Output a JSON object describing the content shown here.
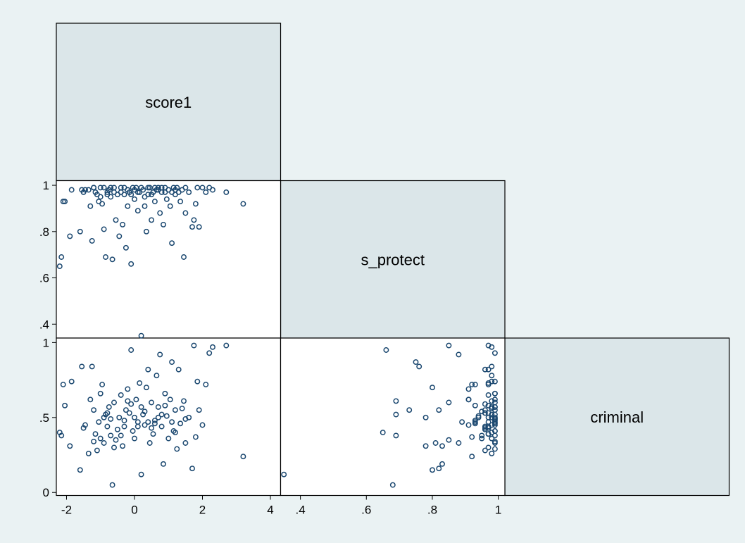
{
  "chart_data": {
    "type": "scatter",
    "kind": "scatterplot-matrix",
    "half": "lower",
    "grid": false,
    "legend": "none",
    "colors": {
      "background": "#eaf2f3",
      "diagonal": "#dbe6e9",
      "marker": "#1a476f"
    },
    "variables": [
      {
        "name": "score1",
        "range": [
          -2.3,
          4.3
        ],
        "ticks": [
          -2,
          0,
          2,
          4
        ],
        "tick_labels": [
          "-2",
          "0",
          "2",
          "4"
        ]
      },
      {
        "name": "s_protect",
        "range": [
          0.34,
          1.02
        ],
        "ticks": [
          0.4,
          0.6,
          0.8,
          1
        ],
        "tick_labels": [
          ".4",
          ".6",
          ".8",
          "1"
        ]
      },
      {
        "name": "criminal",
        "range": [
          -0.02,
          1.03
        ],
        "ticks": [
          0,
          0.5,
          1
        ],
        "tick_labels": [
          "0",
          ".5",
          "1"
        ]
      }
    ],
    "observations": [
      [
        -2.2,
        0.65,
        0.4
      ],
      [
        -2.15,
        0.69,
        0.38
      ],
      [
        -2.1,
        0.93,
        0.72
      ],
      [
        -2.05,
        0.93,
        0.58
      ],
      [
        -1.9,
        0.78,
        0.31
      ],
      [
        -1.85,
        0.98,
        0.74
      ],
      [
        -1.6,
        0.8,
        0.15
      ],
      [
        -1.55,
        0.98,
        0.84
      ],
      [
        -1.45,
        0.98,
        0.45
      ],
      [
        -1.35,
        0.98,
        0.26
      ],
      [
        -1.3,
        0.91,
        0.62
      ],
      [
        -1.25,
        0.76,
        0.84
      ],
      [
        -1.2,
        0.99,
        0.55
      ],
      [
        -1.15,
        0.97,
        0.39
      ],
      [
        -1.1,
        0.96,
        0.28
      ],
      [
        -1.05,
        0.93,
        0.47
      ],
      [
        -1.0,
        0.99,
        0.66
      ],
      [
        -0.95,
        0.92,
        0.72
      ],
      [
        -0.9,
        0.81,
        0.33
      ],
      [
        -0.85,
        0.69,
        0.52
      ],
      [
        -0.8,
        0.97,
        0.44
      ],
      [
        -0.75,
        0.98,
        0.57
      ],
      [
        -0.7,
        0.95,
        0.38
      ],
      [
        -0.65,
        0.68,
        0.05
      ],
      [
        -0.6,
        0.99,
        0.6
      ],
      [
        -0.55,
        0.85,
        0.35
      ],
      [
        -0.5,
        0.96,
        0.42
      ],
      [
        -0.45,
        0.78,
        0.5
      ],
      [
        -0.4,
        0.97,
        0.65
      ],
      [
        -0.35,
        0.83,
        0.31
      ],
      [
        -0.3,
        0.99,
        0.48
      ],
      [
        -0.25,
        0.73,
        0.55
      ],
      [
        -0.2,
        0.91,
        0.69
      ],
      [
        -0.15,
        0.97,
        0.53
      ],
      [
        -0.1,
        0.66,
        0.95
      ],
      [
        -0.05,
        0.99,
        0.41
      ],
      [
        0.0,
        0.94,
        0.5
      ],
      [
        0.05,
        0.99,
        0.62
      ],
      [
        0.1,
        0.89,
        0.47
      ],
      [
        0.15,
        0.97,
        0.73
      ],
      [
        0.2,
        0.35,
        0.12
      ],
      [
        0.25,
        0.98,
        0.52
      ],
      [
        0.3,
        0.91,
        0.45
      ],
      [
        0.35,
        0.8,
        0.7
      ],
      [
        0.4,
        0.96,
        0.82
      ],
      [
        0.45,
        0.99,
        0.33
      ],
      [
        0.5,
        0.85,
        0.6
      ],
      [
        0.55,
        0.97,
        0.39
      ],
      [
        0.6,
        0.93,
        0.48
      ],
      [
        0.65,
        0.98,
        0.78
      ],
      [
        0.7,
        0.99,
        0.57
      ],
      [
        0.75,
        0.88,
        0.92
      ],
      [
        0.8,
        0.97,
        0.44
      ],
      [
        0.85,
        0.83,
        0.19
      ],
      [
        0.9,
        0.99,
        0.66
      ],
      [
        0.95,
        0.94,
        0.51
      ],
      [
        1.0,
        0.98,
        0.36
      ],
      [
        1.05,
        0.91,
        0.62
      ],
      [
        1.1,
        0.75,
        0.87
      ],
      [
        1.15,
        0.99,
        0.41
      ],
      [
        1.2,
        0.96,
        0.55
      ],
      [
        1.25,
        0.99,
        0.29
      ],
      [
        1.3,
        0.97,
        0.82
      ],
      [
        1.35,
        0.93,
        0.46
      ],
      [
        1.45,
        0.69,
        0.61
      ],
      [
        1.5,
        0.88,
        0.33
      ],
      [
        1.6,
        0.97,
        0.5
      ],
      [
        1.7,
        0.82,
        0.16
      ],
      [
        1.75,
        0.85,
        0.98
      ],
      [
        1.8,
        0.92,
        0.37
      ],
      [
        1.85,
        0.99,
        0.74
      ],
      [
        1.9,
        0.82,
        0.55
      ],
      [
        2.0,
        0.99,
        0.45
      ],
      [
        2.1,
        0.97,
        0.72
      ],
      [
        2.2,
        0.99,
        0.93
      ],
      [
        2.3,
        0.98,
        0.97
      ],
      [
        2.7,
        0.97,
        0.98
      ],
      [
        3.2,
        0.92,
        0.24
      ],
      [
        -0.9,
        0.99,
        0.5
      ],
      [
        -0.6,
        0.97,
        0.3
      ],
      [
        -0.3,
        0.96,
        0.44
      ],
      [
        0.0,
        0.98,
        0.36
      ],
      [
        0.3,
        0.95,
        0.54
      ],
      [
        0.6,
        0.99,
        0.46
      ],
      [
        0.9,
        0.97,
        0.58
      ],
      [
        1.2,
        0.98,
        0.4
      ],
      [
        1.5,
        0.99,
        0.49
      ],
      [
        -1.5,
        0.97,
        0.43
      ],
      [
        -1.0,
        0.95,
        0.36
      ],
      [
        -0.7,
        0.99,
        0.49
      ],
      [
        -0.2,
        0.98,
        0.61
      ],
      [
        0.2,
        0.99,
        0.57
      ],
      [
        0.5,
        0.96,
        0.43
      ],
      [
        0.8,
        0.99,
        0.52
      ],
      [
        1.1,
        0.97,
        0.47
      ],
      [
        -0.4,
        0.99,
        0.38
      ],
      [
        0.1,
        0.97,
        0.44
      ],
      [
        0.7,
        0.98,
        0.5
      ],
      [
        -0.8,
        0.96,
        0.53
      ],
      [
        1.4,
        0.98,
        0.56
      ],
      [
        -1.2,
        0.99,
        0.34
      ],
      [
        0.4,
        0.99,
        0.47
      ],
      [
        -0.1,
        0.96,
        0.59
      ]
    ]
  }
}
